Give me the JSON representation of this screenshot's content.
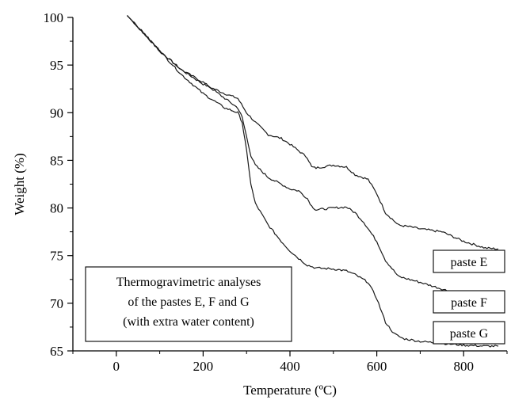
{
  "chart_data": {
    "type": "line",
    "title": "",
    "xlabel": "Temperature (ºC)",
    "ylabel": "Weight (%)",
    "xlim": [
      -100,
      900
    ],
    "ylim": [
      65,
      100
    ],
    "xticks": [
      0,
      200,
      400,
      600,
      800
    ],
    "yticks": [
      65,
      70,
      75,
      80,
      85,
      90,
      95,
      100
    ],
    "grid": false,
    "annotation": [
      "Thermogravimetric analyses",
      "of the pastes E, F and G",
      "(with extra water content)"
    ],
    "series": [
      {
        "name": "paste E",
        "x": [
          25,
          50,
          100,
          150,
          200,
          250,
          280,
          300,
          320,
          350,
          380,
          400,
          420,
          440,
          450,
          460,
          500,
          530,
          550,
          580,
          600,
          620,
          650,
          680,
          700,
          750,
          800,
          850,
          880
        ],
        "y": [
          100.2,
          99,
          96.5,
          94.5,
          93,
          92,
          91.5,
          90,
          89,
          87.7,
          87.3,
          86.7,
          86,
          85.3,
          84.3,
          84.2,
          84.5,
          84.3,
          83.5,
          83,
          81.5,
          79.5,
          78.2,
          78,
          77.8,
          77.5,
          76.5,
          75.8,
          75.7
        ]
      },
      {
        "name": "paste F",
        "x": [
          25,
          50,
          100,
          150,
          200,
          250,
          280,
          290,
          300,
          310,
          320,
          350,
          380,
          400,
          420,
          440,
          450,
          460,
          500,
          530,
          550,
          570,
          600,
          620,
          650,
          700,
          750,
          800,
          850,
          880
        ],
        "y": [
          100.2,
          99,
          96.5,
          94.5,
          93.2,
          91.5,
          90.5,
          89.5,
          87.5,
          85.5,
          84.5,
          83.2,
          82.5,
          82,
          81.8,
          81,
          80.2,
          79.8,
          80,
          80.1,
          79.5,
          78.5,
          76.5,
          74.5,
          72.8,
          72.2,
          71.5,
          70.8,
          70.2,
          70
        ]
      },
      {
        "name": "paste G",
        "x": [
          25,
          50,
          100,
          150,
          200,
          250,
          280,
          290,
          300,
          310,
          320,
          350,
          380,
          400,
          420,
          440,
          460,
          500,
          530,
          550,
          580,
          600,
          620,
          640,
          660,
          700,
          750,
          800,
          850,
          880
        ],
        "y": [
          100.2,
          99,
          96.5,
          94,
          92,
          90.5,
          90,
          89,
          86,
          82.5,
          80.5,
          78.2,
          76.5,
          75.5,
          74.7,
          74,
          73.7,
          73.6,
          73.4,
          73,
          72.2,
          70.5,
          68,
          66.8,
          66.3,
          66,
          65.8,
          65.6,
          65.5,
          65.5
        ]
      }
    ]
  }
}
